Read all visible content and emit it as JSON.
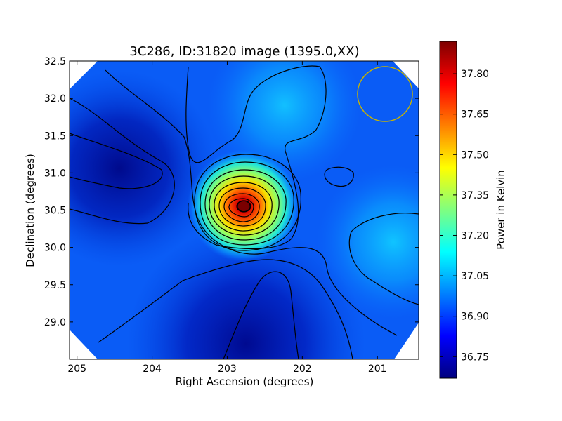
{
  "chart_data": {
    "type": "heatmap",
    "title": "3C286, ID:31820 image (1395.0,XX)",
    "xlabel": "Right Ascension (degrees)",
    "ylabel": "Declination (degrees)",
    "colorbar_label": "Power in Kelvin",
    "colormap": "jet",
    "x_range": [
      205.1,
      200.45
    ],
    "y_range": [
      28.5,
      32.5
    ],
    "x_ticks": [
      "205",
      "204",
      "203",
      "202",
      "201"
    ],
    "x_tick_values": [
      205,
      204,
      203,
      202,
      201
    ],
    "y_ticks": [
      "32.5",
      "32.0",
      "31.5",
      "31.0",
      "30.5",
      "30.0",
      "29.5",
      "29.0"
    ],
    "y_tick_values": [
      32.5,
      32.0,
      31.5,
      31.0,
      30.5,
      30.0,
      29.5,
      29.0
    ],
    "colorbar_range": [
      36.67,
      37.92
    ],
    "colorbar_ticks": [
      "37.80",
      "37.65",
      "37.50",
      "37.35",
      "37.20",
      "37.05",
      "36.90",
      "36.75"
    ],
    "colorbar_tick_values": [
      37.8,
      37.65,
      37.5,
      37.35,
      37.2,
      37.05,
      36.9,
      36.75
    ],
    "peak": {
      "ra": 202.78,
      "dec": 30.55,
      "value": 37.89
    },
    "beam_circle": {
      "ra": 200.9,
      "dec": 32.07,
      "radius_deg": 0.37,
      "color": "#c8b400"
    },
    "colors": {
      "contour": "#000000",
      "beam": "#c8b400"
    }
  }
}
